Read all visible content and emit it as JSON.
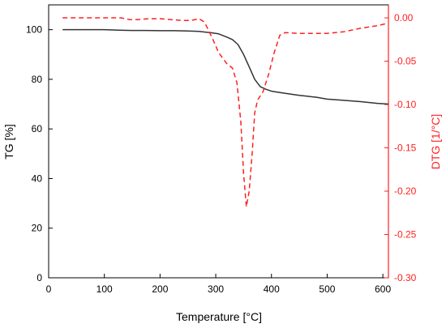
{
  "chart_data": {
    "type": "line",
    "xlabel": "Temperature [°C]",
    "ylabel_left": "TG [%]",
    "ylabel_right": "DTG [1/°C]",
    "xlim": [
      0,
      610
    ],
    "ylim_left": [
      0,
      110
    ],
    "ylim_right": [
      -0.3,
      0.015
    ],
    "x_ticks": [
      "0",
      "100",
      "200",
      "300",
      "400",
      "500",
      "600"
    ],
    "y_ticks_left": [
      "0",
      "20",
      "40",
      "60",
      "80",
      "100"
    ],
    "y_ticks_right": [
      "0.00",
      "-0.05",
      "-0.10",
      "-0.15",
      "-0.20",
      "-0.25",
      "-0.30"
    ],
    "grid": false,
    "colors": {
      "tg": "#333333",
      "dtg": "#ff2020",
      "axis_left": "#000000",
      "axis_right": "#ff2020"
    },
    "series": [
      {
        "axis": "left",
        "style": "solid",
        "x": [
          25,
          50,
          75,
          100,
          125,
          150,
          175,
          200,
          225,
          250,
          270,
          290,
          305,
          320,
          330,
          340,
          350,
          360,
          370,
          380,
          390,
          400,
          420,
          450,
          480,
          500,
          530,
          560,
          590,
          610
        ],
        "values": [
          100,
          100,
          100,
          100,
          99.8,
          99.7,
          99.7,
          99.6,
          99.6,
          99.5,
          99.3,
          98.8,
          98.3,
          97,
          96,
          94,
          90,
          85,
          80,
          77,
          76,
          75.2,
          74.5,
          73.5,
          72.8,
          72,
          71.5,
          71,
          70.3,
          70
        ]
      },
      {
        "axis": "right",
        "style": "dashed",
        "x": [
          25,
          100,
          130,
          145,
          160,
          180,
          200,
          220,
          240,
          255,
          270,
          280,
          295,
          305,
          320,
          330,
          338,
          345,
          350,
          355,
          360,
          365,
          370,
          375,
          385,
          395,
          405,
          415,
          425,
          450,
          480,
          500,
          530,
          560,
          590,
          610
        ],
        "values": [
          0,
          0,
          0,
          -0.002,
          -0.002,
          -0.001,
          -0.001,
          -0.002,
          -0.003,
          -0.003,
          -0.001,
          -0.005,
          -0.025,
          -0.04,
          -0.053,
          -0.058,
          -0.075,
          -0.12,
          -0.18,
          -0.218,
          -0.2,
          -0.16,
          -0.11,
          -0.095,
          -0.085,
          -0.065,
          -0.04,
          -0.02,
          -0.017,
          -0.018,
          -0.018,
          -0.018,
          -0.016,
          -0.012,
          -0.009,
          -0.006
        ]
      }
    ]
  }
}
